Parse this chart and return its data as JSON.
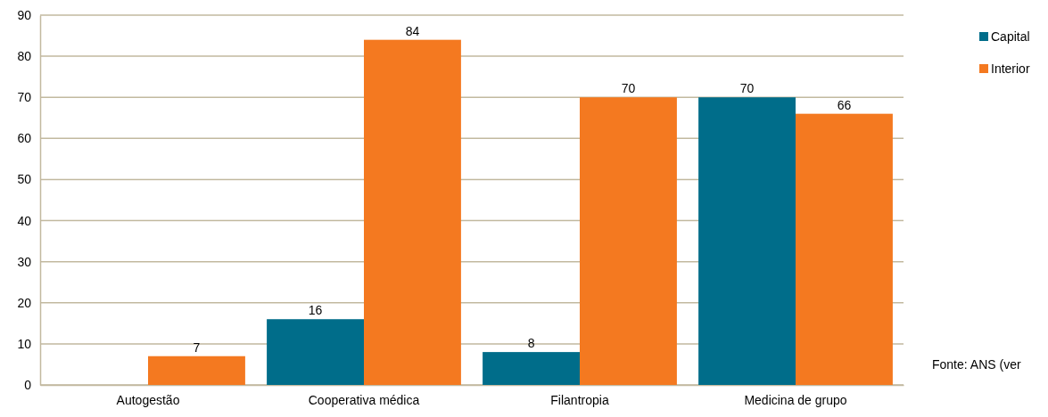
{
  "chart_data": {
    "type": "bar",
    "categories": [
      "Autogestão",
      "Cooperativa médica",
      "Filantropia",
      "Medicina de grupo"
    ],
    "series": [
      {
        "name": "Capital",
        "color": "#006d8a",
        "values": [
          null,
          16,
          8,
          70
        ]
      },
      {
        "name": "Interior",
        "color": "#f47920",
        "values": [
          7,
          84,
          70,
          66
        ]
      }
    ],
    "ylim": [
      0,
      90
    ],
    "yticks": [
      0,
      10,
      20,
      30,
      40,
      50,
      60,
      70,
      80,
      90
    ],
    "grid": "y",
    "legend": "right",
    "data_labels": true,
    "annotations": [
      "Fonte: ANS (ver"
    ]
  }
}
